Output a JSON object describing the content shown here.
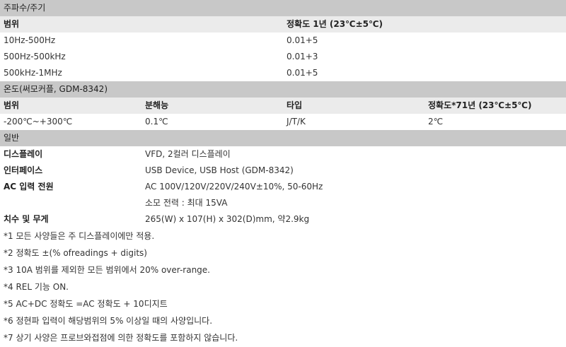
{
  "freq": {
    "section_title": "주파수/주기",
    "col1": "범위",
    "col2": "정확도 1년 (23℃±5℃)",
    "rows": [
      {
        "range": "10Hz-500Hz",
        "acc": "0.01+5"
      },
      {
        "range": "500Hz-500kHz",
        "acc": "0.01+3"
      },
      {
        "range": "500kHz-1MHz",
        "acc": "0.01+5"
      }
    ]
  },
  "temp": {
    "section_title": "온도(써모커플, GDM-8342)",
    "col1": "범위",
    "col2": "분해능",
    "col3": "타입",
    "col4": "정확도*71년 (23℃±5℃)",
    "row": {
      "range": "-200℃~+300℃",
      "res": "0.1℃",
      "type": "J/T/K",
      "acc": "2℃"
    }
  },
  "general": {
    "section_title": "일반",
    "rows": [
      {
        "label": "디스플레이",
        "value": "VFD, 2컬러 디스플레이"
      },
      {
        "label": "인터페이스",
        "value": "USB Device, USB Host (GDM-8342)"
      },
      {
        "label": "AC 입력 전원",
        "value": "AC 100V/120V/220V/240V±10%, 50-60Hz"
      },
      {
        "label": "",
        "value": "소모 전력 : 최대 15VA"
      },
      {
        "label": "치수 및 무게",
        "value": "265(W) x 107(H) x 302(D)mm, 약2.9kg"
      }
    ]
  },
  "notes": [
    "*1 모든 사양들은 주 디스플레이에만 적용.",
    "*2 정확도 ±(% ofreadings + digits)",
    "*3 10A 범위를 제외한 모든 범위에서 20% over-range.",
    "*4 REL 기능 ON.",
    "*5 AC+DC 정확도 =AC 정확도 + 10디지트",
    "*6 정현파 입력이 해당범위의 5% 이상일 때의 사양입니다.",
    "*7 상기 사양은 프로브와접점에 의한 정확도를 포함하지 않습니다."
  ]
}
